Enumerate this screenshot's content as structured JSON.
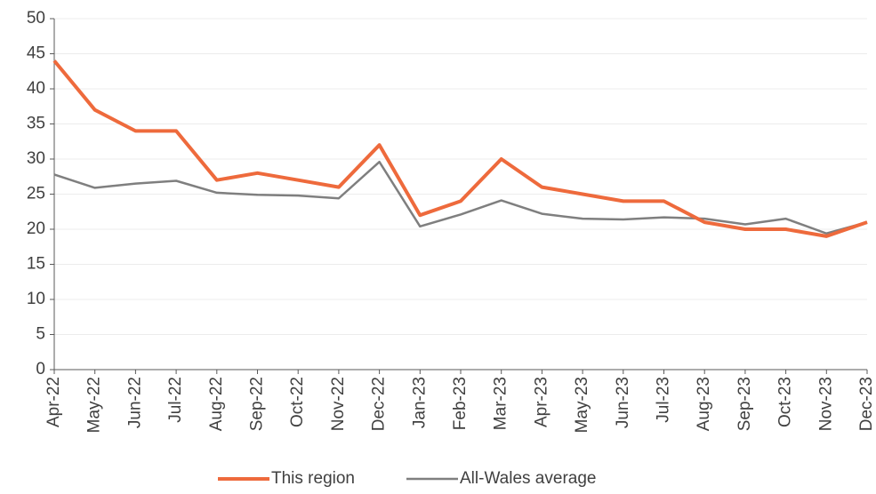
{
  "chart_data": {
    "type": "line",
    "categories": [
      "Apr-22",
      "May-22",
      "Jun-22",
      "Jul-22",
      "Aug-22",
      "Sep-22",
      "Oct-22",
      "Nov-22",
      "Dec-22",
      "Jan-23",
      "Feb-23",
      "Mar-23",
      "Apr-23",
      "May-23",
      "Jun-23",
      "Jul-23",
      "Aug-23",
      "Sep-23",
      "Oct-23",
      "Nov-23",
      "Dec-23"
    ],
    "series": [
      {
        "name": "This region",
        "color": "#ee6a3c",
        "values": [
          44,
          37,
          34,
          34,
          27,
          28,
          27,
          26,
          32,
          22,
          24,
          30,
          26,
          25,
          24,
          24,
          21,
          20,
          20,
          19,
          21
        ]
      },
      {
        "name": "All-Wales average",
        "color": "#7f7f7f",
        "values": [
          27.8,
          25.9,
          26.5,
          26.9,
          25.2,
          24.9,
          24.8,
          24.4,
          29.6,
          20.4,
          22.1,
          24.1,
          22.2,
          21.5,
          21.4,
          21.7,
          21.5,
          20.7,
          21.5,
          19.4,
          21.0
        ]
      }
    ],
    "ylim": [
      0,
      50
    ],
    "yticks": [
      0,
      5,
      10,
      15,
      20,
      25,
      30,
      35,
      40,
      45,
      50
    ],
    "grid": true,
    "legend": "bottom"
  }
}
